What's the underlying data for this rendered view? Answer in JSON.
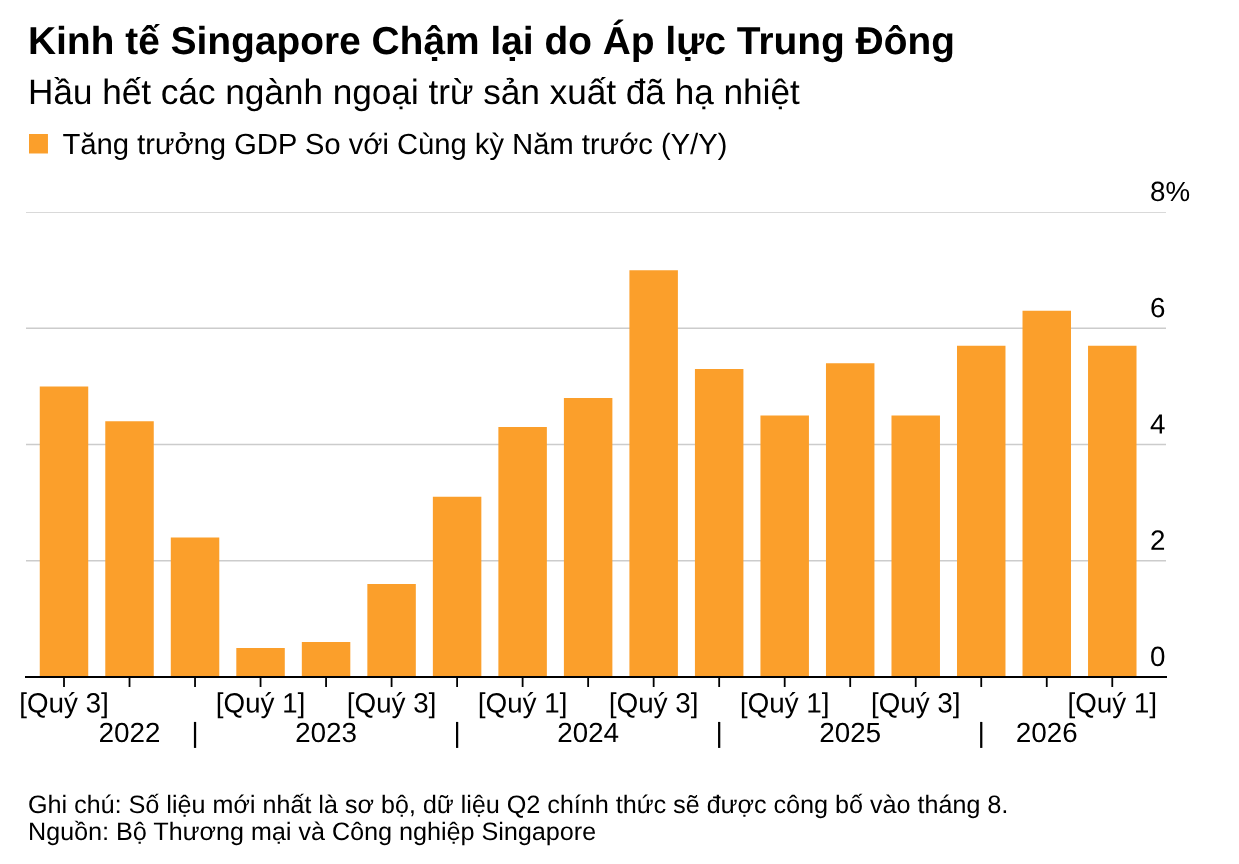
{
  "chart_data": {
    "type": "bar",
    "title": "Kinh tế Singapore Chậm lại do Áp lực Trung Đông",
    "subtitle": "Hầu hết các ngành ngoại trừ sản xuất đã hạ nhiệt",
    "categories": [
      "[Quý 3]",
      "\n2022",
      "\n|",
      "[Quý 1]",
      "\n2023",
      "[Quý 3]",
      "\n|",
      "[Quý 1]",
      "\n2024",
      "[Quý 3]",
      "\n|",
      "[Quý 1]",
      "\n2025",
      "[Quý 3]",
      "\n|",
      "\n2026",
      "[Quý 1]"
    ],
    "series": [
      {
        "name": "Tăng trưởng GDP So với Cùng kỳ Năm trước (Y/Y)",
        "color": "#fb9f2b",
        "values": [
          5.0,
          4.4,
          2.4,
          0.5,
          0.6,
          1.6,
          3.1,
          4.3,
          4.8,
          7.0,
          5.3,
          4.5,
          5.4,
          4.5,
          5.7,
          6.3,
          5.7
        ]
      }
    ],
    "ylim": [
      0,
      8
    ],
    "yticks": [
      0,
      2,
      4,
      6,
      {
        "value": 8,
        "label": "8%"
      }
    ],
    "grid": "y",
    "legend": "top left",
    "annotations": [
      "Ghi chú: Số liệu mới nhất là sơ bộ, dữ liệu Q2 chính thức sẽ được công bố vào tháng 8.",
      "Nguồn: Bộ Thương mại và Công nghiệp Singapore"
    ]
  }
}
